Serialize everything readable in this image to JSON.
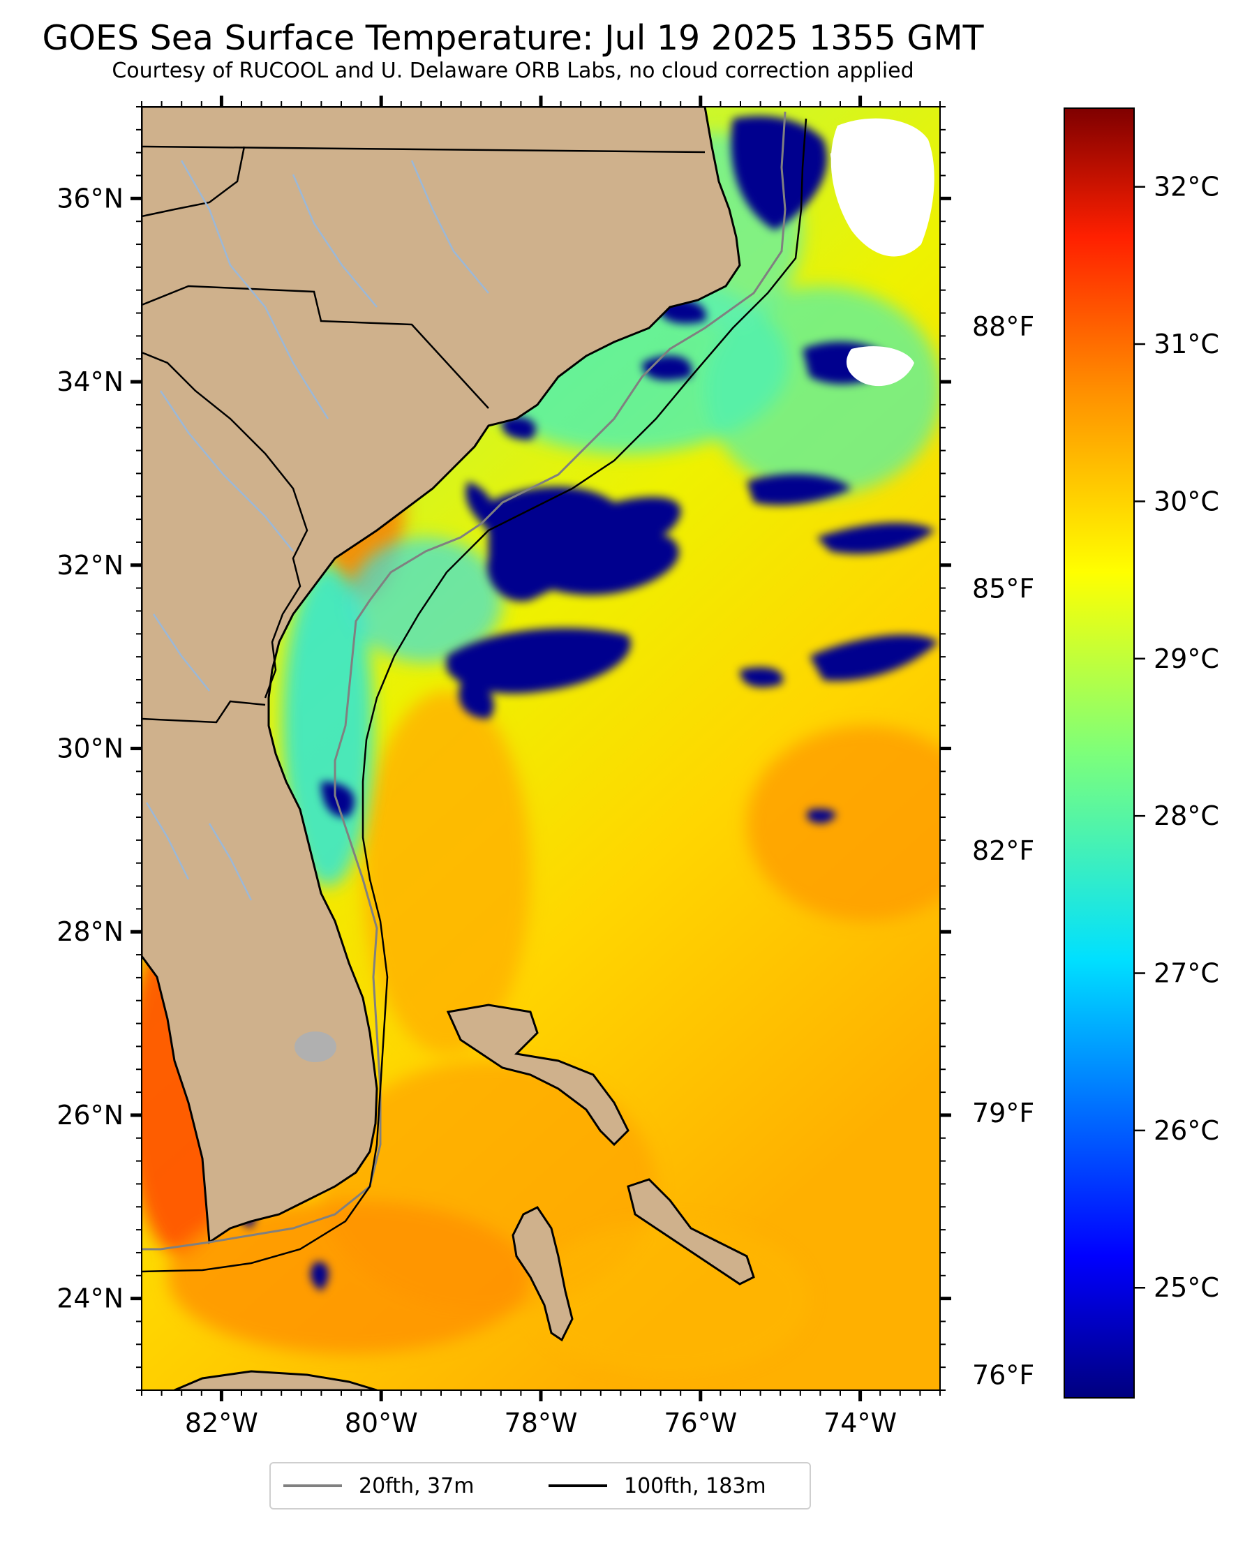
{
  "title": "GOES Sea Surface Temperature: Jul 19 2025 1355 GMT",
  "subtitle": "Courtesy of RUCOOL and U. Delaware ORB Labs, no cloud correction applied",
  "map": {
    "lon_range": [
      -83,
      -73
    ],
    "lat_range": [
      23,
      37
    ],
    "lat_ticks": [
      {
        "value": 36,
        "label": "36°N"
      },
      {
        "value": 34,
        "label": "34°N"
      },
      {
        "value": 32,
        "label": "32°N"
      },
      {
        "value": 30,
        "label": "30°N"
      },
      {
        "value": 28,
        "label": "28°N"
      },
      {
        "value": 26,
        "label": "26°N"
      },
      {
        "value": 24,
        "label": "24°N"
      }
    ],
    "lon_ticks": [
      {
        "value": -82,
        "label": "82°W"
      },
      {
        "value": -80,
        "label": "80°W"
      },
      {
        "value": -78,
        "label": "78°W"
      },
      {
        "value": -76,
        "label": "76°W"
      },
      {
        "value": -74,
        "label": "74°W"
      }
    ],
    "fahrenheit_ticks": [
      {
        "value": 88,
        "label": "88°F"
      },
      {
        "value": 85,
        "label": "85°F"
      },
      {
        "value": 82,
        "label": "82°F"
      },
      {
        "value": 79,
        "label": "79°F"
      },
      {
        "value": 76,
        "label": "76°F"
      }
    ],
    "colors": {
      "land": "#cfb18c",
      "cloud_cold": "#00008e",
      "warm_core": "#ff8a00",
      "mid": "#f0f000",
      "cool": "#28e0d0",
      "hot": "#ff3000"
    }
  },
  "colorbar": {
    "colormap": "jet",
    "range_c": [
      24.3,
      32.5
    ],
    "ticks": [
      {
        "value": 32,
        "label": "32°C"
      },
      {
        "value": 31,
        "label": "31°C"
      },
      {
        "value": 30,
        "label": "30°C"
      },
      {
        "value": 29,
        "label": "29°C"
      },
      {
        "value": 28,
        "label": "28°C"
      },
      {
        "value": 27,
        "label": "27°C"
      },
      {
        "value": 26,
        "label": "26°C"
      },
      {
        "value": 25,
        "label": "25°C"
      }
    ]
  },
  "legend": [
    {
      "label": "20fth, 37m",
      "color": "#808080"
    },
    {
      "label": "100fth, 183m",
      "color": "#000000"
    }
  ]
}
